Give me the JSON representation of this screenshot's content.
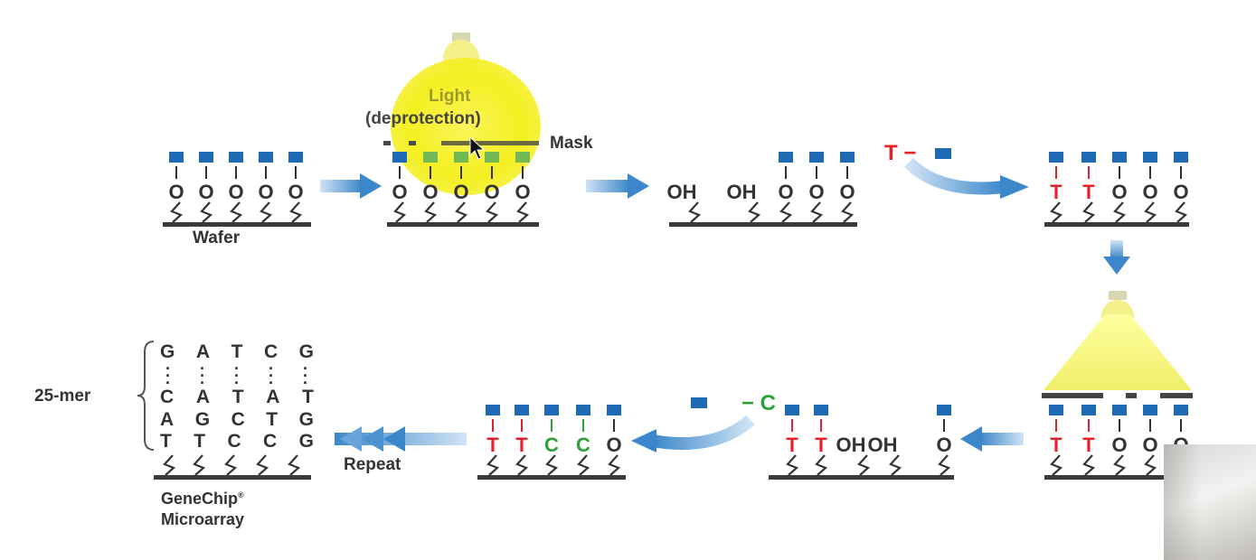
{
  "labels": {
    "light": "Light",
    "deprotection": "(deprotection)",
    "mask": "Mask",
    "wafer": "Wafer",
    "repeat": "Repeat",
    "mer": "25-mer",
    "genechip": "GeneChip",
    "genechip_mark": "®",
    "microarray": "Microarray",
    "oh": "OH",
    "o": "O"
  },
  "reagents": {
    "t_monomer": "T −",
    "c_monomer": "− C"
  },
  "sequence": {
    "top": [
      "G",
      "A",
      "T",
      "C",
      "G"
    ],
    "rows": [
      [
        "C",
        "A",
        "T",
        "A",
        "T"
      ],
      [
        "A",
        "G",
        "C",
        "T",
        "G"
      ],
      [
        "T",
        "T",
        "C",
        "C",
        "G"
      ]
    ]
  },
  "colors": {
    "blue": "#1f6ab5",
    "red": "#e8202a",
    "green": "#2aa23a",
    "light_yellow": "#f4f000",
    "arrow": "#3b87c9",
    "text": "#333333"
  }
}
